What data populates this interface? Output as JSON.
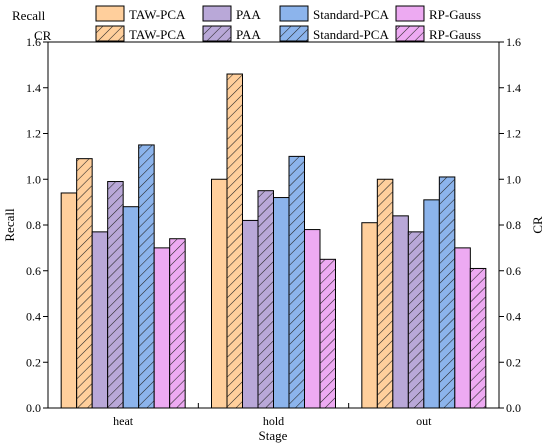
{
  "chart_data": {
    "type": "bar",
    "xlabel": "Stage",
    "ylabel_left": "Recall",
    "ylabel_right": "CR",
    "categories": [
      "heat",
      "hold",
      "out"
    ],
    "ylim": [
      0,
      1.6
    ],
    "yticks": [
      "0.0",
      "0.2",
      "0.4",
      "0.6",
      "0.8",
      "1.0",
      "1.2",
      "1.4",
      "1.6"
    ],
    "legend_position": "top",
    "legend_row_labels": [
      "Recall",
      "CR"
    ],
    "methods": [
      {
        "name": "TAW-PCA",
        "color": "#FFCF9C"
      },
      {
        "name": "PAA",
        "color": "#B9A8D8"
      },
      {
        "name": "Standard-PCA",
        "color": "#8CB4EC"
      },
      {
        "name": "RP-Gauss",
        "color": "#EDAAF2"
      }
    ],
    "series": [
      {
        "metric": "Recall",
        "method": "TAW-PCA",
        "values": [
          0.94,
          1.0,
          0.81
        ],
        "hatched": false
      },
      {
        "metric": "CR",
        "method": "TAW-PCA",
        "values": [
          1.09,
          1.46,
          1.0
        ],
        "hatched": true
      },
      {
        "metric": "Recall",
        "method": "PAA",
        "values": [
          0.77,
          0.82,
          0.84
        ],
        "hatched": false
      },
      {
        "metric": "CR",
        "method": "PAA",
        "values": [
          0.99,
          0.95,
          0.77
        ],
        "hatched": true
      },
      {
        "metric": "Recall",
        "method": "Standard-PCA",
        "values": [
          0.88,
          0.92,
          0.91
        ],
        "hatched": false
      },
      {
        "metric": "CR",
        "method": "Standard-PCA",
        "values": [
          1.15,
          1.1,
          1.01
        ],
        "hatched": true
      },
      {
        "metric": "Recall",
        "method": "RP-Gauss",
        "values": [
          0.7,
          0.78,
          0.7
        ],
        "hatched": false
      },
      {
        "metric": "CR",
        "method": "RP-Gauss",
        "values": [
          0.74,
          0.65,
          0.61
        ],
        "hatched": true
      }
    ]
  }
}
